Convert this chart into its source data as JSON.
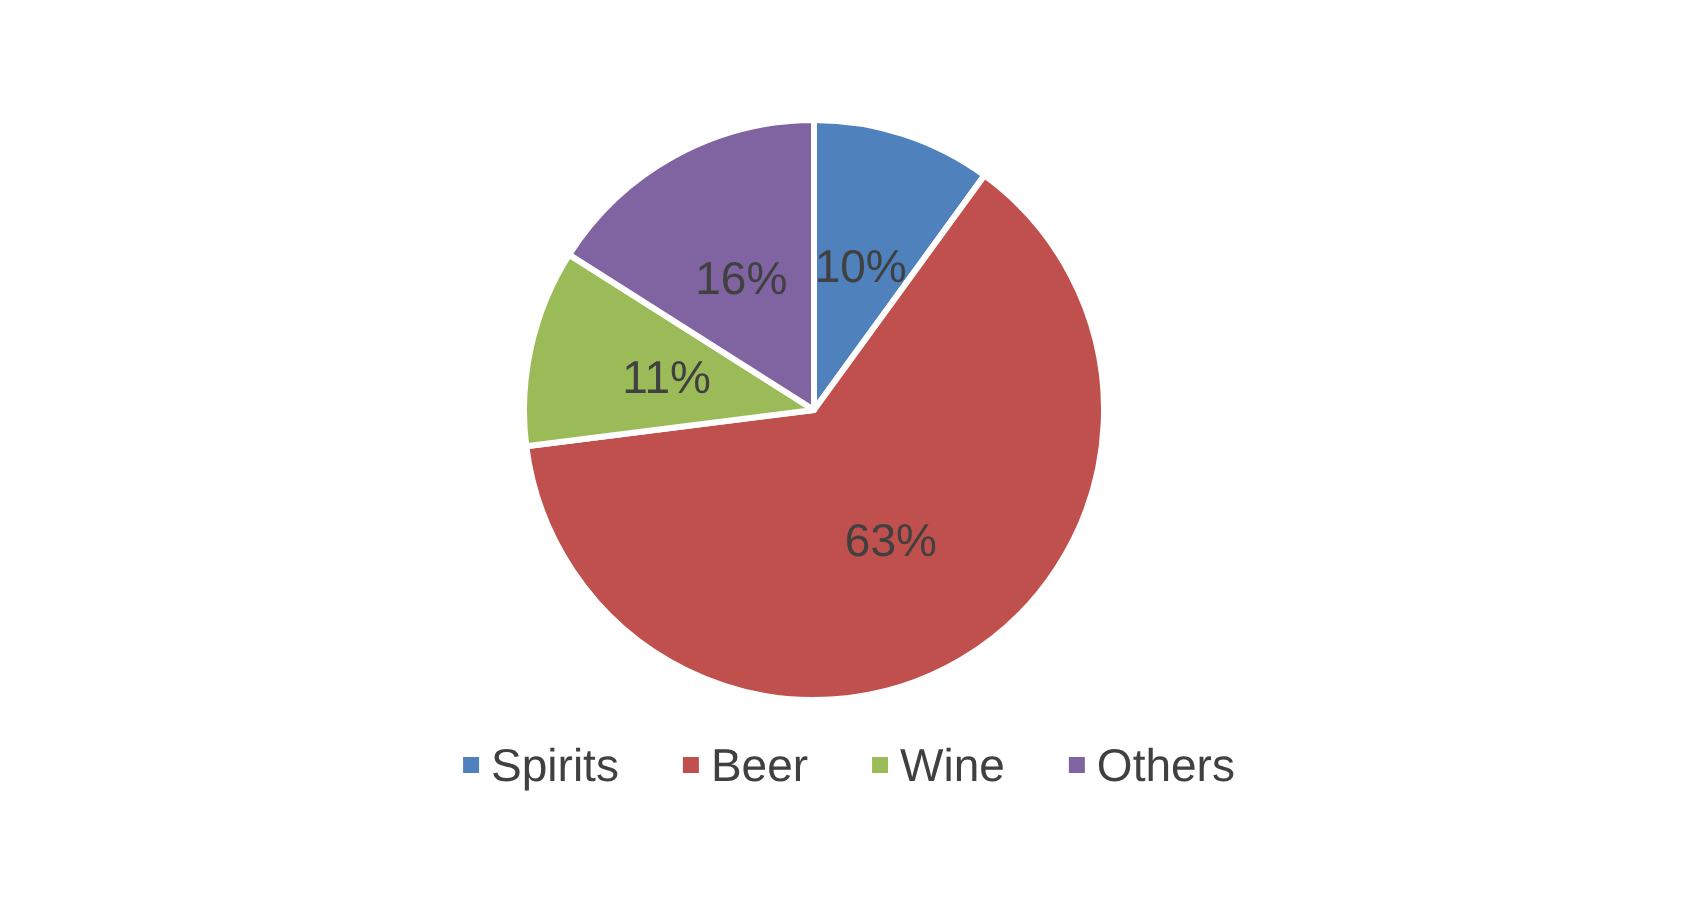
{
  "chart_data": {
    "type": "pie",
    "categories": [
      "Spirits",
      "Beer",
      "Wine",
      "Others"
    ],
    "values": [
      10,
      63,
      11,
      16
    ],
    "colors": [
      "#4f81bd",
      "#c0504d",
      "#9bbb59",
      "#8064a2"
    ],
    "value_labels": [
      "10%",
      "63%",
      "11%",
      "16%"
    ],
    "legend": "bottom"
  }
}
